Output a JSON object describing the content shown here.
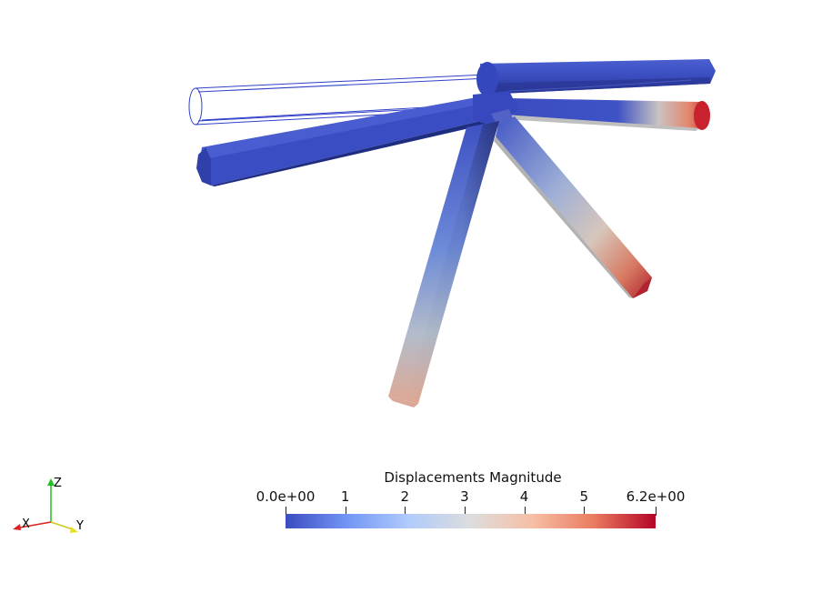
{
  "render_view": {
    "colorbar": {
      "title": "Displacements Magnitude",
      "min_label": "0.0e+00",
      "max_label": "6.2e+00",
      "tick_labels": [
        "0.0e+00",
        "1",
        "2",
        "3",
        "4",
        "5",
        "6.2e+00"
      ],
      "tick_values": [
        0,
        1,
        2,
        3,
        4,
        5,
        6.2
      ],
      "range": [
        0,
        6.2
      ],
      "colormap": "Cool to Warm",
      "colors": [
        "#3b4cc0",
        "#7396f5",
        "#b0cbfc",
        "#dddddd",
        "#f6bfa6",
        "#ea7b60",
        "#b40426"
      ]
    },
    "orientation_axes": {
      "x_label": "X",
      "y_label": "Y",
      "z_label": "Z",
      "x_color": "#e02020",
      "y_color": "#e8e020",
      "z_color": "#20c020"
    }
  }
}
